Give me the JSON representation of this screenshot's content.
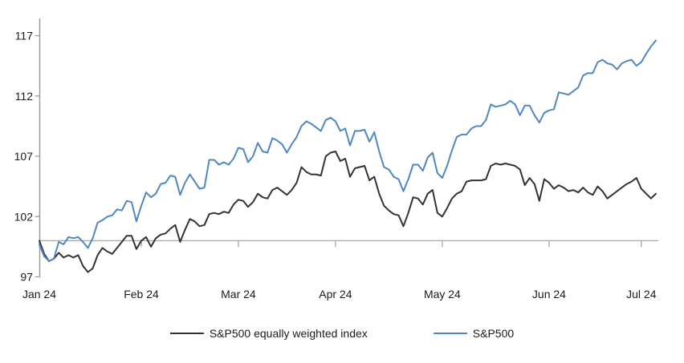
{
  "chart_data": {
    "type": "line",
    "title": "",
    "xlabel": "",
    "ylabel": "",
    "y_axis": {
      "ticks": [
        97,
        102,
        107,
        112,
        117
      ],
      "min": 97,
      "max": 117,
      "cross_value": 100
    },
    "x_axis": {
      "tick_labels": [
        "Jan 24",
        "Feb 24",
        "Mar 24",
        "Apr 24",
        "May 24",
        "Jun 24",
        "Jul 24"
      ],
      "tick_indices": [
        0,
        21,
        41,
        61,
        83,
        105,
        124
      ]
    },
    "grid": "horizontal line at 100 only (category axis crosses at 100)",
    "legend_position": "bottom-center",
    "colors": {
      "axis": "#9d9d9d",
      "cross_line": "#a6a6a6",
      "text": "#1a1a1a"
    },
    "x_dates": [
      "01-02",
      "01-03",
      "01-04",
      "01-05",
      "01-08",
      "01-09",
      "01-10",
      "01-11",
      "01-12",
      "01-16",
      "01-17",
      "01-18",
      "01-19",
      "01-22",
      "01-23",
      "01-24",
      "01-25",
      "01-26",
      "01-29",
      "01-30",
      "01-31",
      "02-01",
      "02-02",
      "02-05",
      "02-06",
      "02-07",
      "02-08",
      "02-09",
      "02-12",
      "02-13",
      "02-14",
      "02-15",
      "02-16",
      "02-20",
      "02-21",
      "02-22",
      "02-23",
      "02-26",
      "02-27",
      "02-28",
      "02-29",
      "03-01",
      "03-04",
      "03-05",
      "03-06",
      "03-07",
      "03-08",
      "03-11",
      "03-12",
      "03-13",
      "03-14",
      "03-15",
      "03-18",
      "03-19",
      "03-20",
      "03-21",
      "03-22",
      "03-25",
      "03-26",
      "03-27",
      "03-28",
      "04-01",
      "04-02",
      "04-03",
      "04-04",
      "04-05",
      "04-08",
      "04-09",
      "04-10",
      "04-11",
      "04-12",
      "04-15",
      "04-16",
      "04-17",
      "04-18",
      "04-19",
      "04-22",
      "04-23",
      "04-24",
      "04-25",
      "04-26",
      "04-29",
      "04-30",
      "05-01",
      "05-02",
      "05-03",
      "05-06",
      "05-07",
      "05-08",
      "05-09",
      "05-10",
      "05-13",
      "05-14",
      "05-15",
      "05-16",
      "05-17",
      "05-20",
      "05-21",
      "05-22",
      "05-23",
      "05-24",
      "05-28",
      "05-29",
      "05-30",
      "05-31",
      "06-03",
      "06-04",
      "06-05",
      "06-06",
      "06-07",
      "06-10",
      "06-11",
      "06-12",
      "06-13",
      "06-14",
      "06-17",
      "06-18",
      "06-20",
      "06-21",
      "06-24",
      "06-25",
      "06-26",
      "06-27",
      "06-28",
      "07-01",
      "07-02",
      "07-03",
      "07-05"
    ],
    "series": [
      {
        "name": "S&P500 equally weighted index",
        "color": "#333333",
        "values": [
          100.0,
          98.9,
          98.3,
          98.5,
          99.0,
          98.6,
          98.8,
          98.6,
          98.8,
          97.9,
          97.4,
          97.7,
          98.8,
          99.4,
          99.1,
          98.9,
          99.4,
          99.9,
          100.4,
          100.4,
          99.3,
          100.0,
          100.3,
          99.5,
          100.2,
          100.5,
          100.6,
          101.0,
          101.3,
          99.9,
          100.9,
          101.8,
          101.6,
          101.2,
          101.3,
          102.2,
          102.3,
          102.2,
          102.4,
          102.3,
          103.0,
          103.4,
          103.3,
          102.8,
          103.2,
          103.9,
          103.6,
          103.5,
          104.2,
          104.4,
          104.1,
          103.8,
          104.2,
          104.8,
          106.1,
          105.7,
          105.5,
          105.5,
          105.4,
          107.0,
          107.3,
          107.4,
          106.6,
          106.8,
          105.3,
          106.0,
          106.1,
          106.2,
          105.0,
          105.3,
          103.9,
          102.9,
          102.5,
          102.2,
          102.1,
          101.2,
          102.3,
          103.6,
          103.5,
          103.0,
          103.9,
          104.2,
          102.3,
          102.0,
          102.7,
          103.5,
          103.9,
          104.1,
          104.9,
          105.0,
          105.0,
          105.0,
          105.1,
          106.2,
          106.4,
          106.3,
          106.4,
          106.3,
          106.2,
          105.9,
          104.6,
          105.2,
          104.7,
          103.3,
          105.1,
          104.8,
          104.3,
          104.6,
          104.4,
          104.1,
          104.2,
          104.0,
          104.4,
          104.0,
          103.8,
          104.5,
          104.1,
          103.5,
          103.8,
          104.1,
          104.4,
          104.7,
          104.9,
          105.2,
          104.3,
          103.9,
          103.5,
          103.9
        ]
      },
      {
        "name": "S&P500",
        "color": "#4f87c0",
        "values": [
          99.7,
          98.7,
          98.3,
          98.5,
          99.9,
          99.7,
          100.3,
          100.2,
          100.3,
          99.9,
          99.4,
          100.2,
          101.5,
          101.7,
          102.0,
          102.1,
          102.6,
          102.5,
          103.3,
          103.2,
          101.6,
          102.9,
          104.0,
          103.6,
          103.9,
          104.7,
          104.8,
          105.4,
          105.3,
          103.8,
          104.8,
          105.5,
          104.9,
          104.3,
          104.4,
          106.7,
          106.7,
          106.3,
          106.5,
          106.3,
          106.8,
          107.7,
          107.6,
          106.5,
          107.0,
          108.1,
          107.4,
          107.3,
          108.5,
          108.3,
          108.0,
          107.3,
          108.0,
          108.6,
          109.5,
          109.9,
          109.7,
          109.4,
          109.1,
          110.0,
          110.2,
          109.9,
          109.1,
          109.3,
          107.9,
          109.1,
          109.1,
          109.2,
          108.2,
          109.0,
          107.4,
          106.1,
          105.9,
          105.3,
          105.1,
          104.1,
          105.1,
          106.3,
          106.3,
          105.8,
          106.9,
          107.3,
          105.6,
          105.2,
          106.2,
          107.5,
          108.6,
          108.8,
          108.8,
          109.3,
          109.5,
          109.5,
          110.0,
          111.3,
          111.1,
          111.2,
          111.3,
          111.6,
          111.3,
          110.4,
          111.2,
          111.2,
          110.4,
          109.8,
          110.6,
          110.8,
          110.9,
          112.3,
          112.2,
          112.1,
          112.4,
          112.7,
          113.7,
          113.9,
          113.9,
          114.8,
          115.0,
          114.7,
          114.6,
          114.2,
          114.7,
          114.9,
          115.0,
          114.5,
          114.8,
          115.5,
          116.1,
          116.6
        ]
      }
    ]
  },
  "legend": {
    "items": [
      {
        "label": "S&P500 equally weighted index"
      },
      {
        "label": "S&P500"
      }
    ]
  }
}
